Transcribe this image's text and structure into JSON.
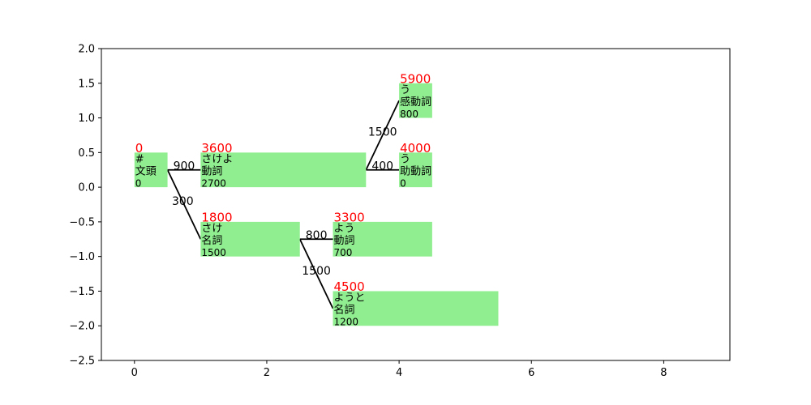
{
  "chart_data": {
    "type": "lattice",
    "xlim": [
      -0.5,
      9.0
    ],
    "ylim": [
      -2.5,
      2.0
    ],
    "xticks": [
      0,
      2,
      4,
      6,
      8
    ],
    "yticks": [
      -2.5,
      -2.0,
      -1.5,
      -1.0,
      -0.5,
      0.0,
      0.5,
      1.0,
      1.5,
      2.0
    ],
    "xtick_labels": [
      "0",
      "2",
      "4",
      "6",
      "8"
    ],
    "ytick_labels": [
      "−2.5",
      "−2.0",
      "−1.5",
      "−1.0",
      "−0.5",
      "0.0",
      "0.5",
      "1.0",
      "1.5",
      "2.0"
    ],
    "colors": {
      "node_fill": "#90ee90",
      "cost": "#ff0000",
      "edge": "#000000"
    },
    "nodes": [
      {
        "id": "n0",
        "x0": 0,
        "x1": 0.5,
        "y0": 0,
        "y1": 0.5,
        "cost": "0",
        "surface": "#",
        "pos": "文頭",
        "word_cost": "0"
      },
      {
        "id": "n1",
        "x0": 1,
        "x1": 3.5,
        "y0": 0,
        "y1": 0.5,
        "cost": "3600",
        "surface": "さけよ",
        "pos": "動詞",
        "word_cost": "2700"
      },
      {
        "id": "n2",
        "x0": 1,
        "x1": 2.5,
        "y0": -1,
        "y1": -0.5,
        "cost": "1800",
        "surface": "さけ",
        "pos": "名詞",
        "word_cost": "1500"
      },
      {
        "id": "n3",
        "x0": 3,
        "x1": 4.5,
        "y0": -1,
        "y1": -0.5,
        "cost": "3300",
        "surface": "よう",
        "pos": "動詞",
        "word_cost": "700"
      },
      {
        "id": "n4",
        "x0": 3,
        "x1": 5.5,
        "y0": -2,
        "y1": -1.5,
        "cost": "4500",
        "surface": "ようと",
        "pos": "名詞",
        "word_cost": "1200"
      },
      {
        "id": "n5",
        "x0": 4,
        "x1": 4.5,
        "y0": 1,
        "y1": 1.5,
        "cost": "5900",
        "surface": "う",
        "pos": "感動詞",
        "word_cost": "800"
      },
      {
        "id": "n6",
        "x0": 4,
        "x1": 4.5,
        "y0": 0,
        "y1": 0.5,
        "cost": "4000",
        "surface": "う",
        "pos": "助動詞",
        "word_cost": "0"
      }
    ],
    "edges": [
      {
        "from": [
          0.5,
          0.25
        ],
        "to": [
          1,
          0.25
        ],
        "label": "900",
        "label_at": [
          0.75,
          0.31
        ]
      },
      {
        "from": [
          0.5,
          0.25
        ],
        "to": [
          1,
          -0.75
        ],
        "label": "300",
        "label_at": [
          0.73,
          -0.2
        ]
      },
      {
        "from": [
          2.5,
          -0.75
        ],
        "to": [
          3,
          -0.75
        ],
        "label": "800",
        "label_at": [
          2.75,
          -0.69
        ]
      },
      {
        "from": [
          2.5,
          -0.75
        ],
        "to": [
          3,
          -1.75
        ],
        "label": "1500",
        "label_at": [
          2.75,
          -1.2
        ]
      },
      {
        "from": [
          3.5,
          0.25
        ],
        "to": [
          4,
          1.25
        ],
        "label": "1500",
        "label_at": [
          3.75,
          0.8
        ]
      },
      {
        "from": [
          3.5,
          0.25
        ],
        "to": [
          4,
          0.25
        ],
        "label": "400",
        "label_at": [
          3.75,
          0.31
        ]
      }
    ]
  }
}
